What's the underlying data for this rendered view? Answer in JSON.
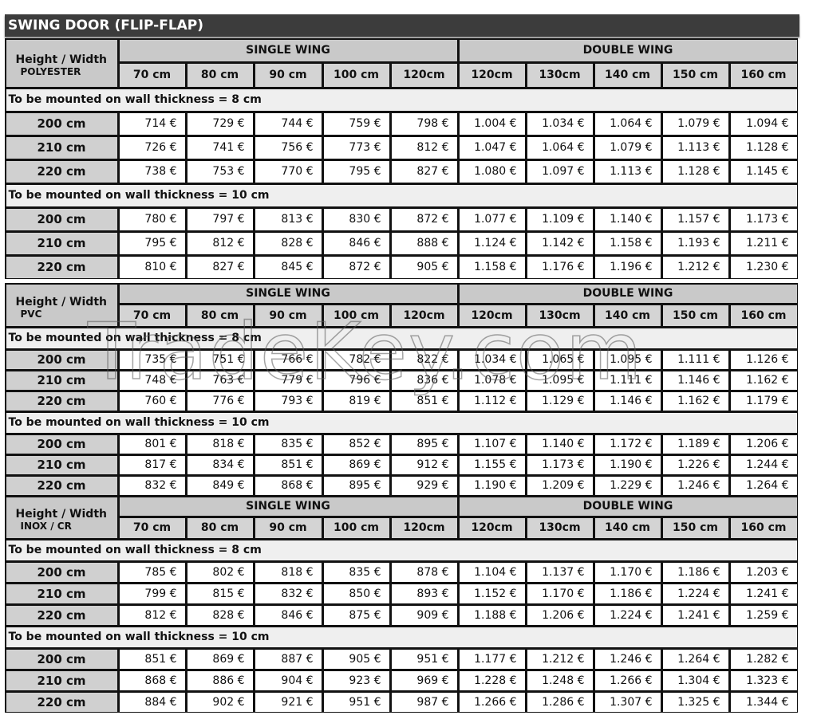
{
  "title": "SWING DOOR (FLIP-FLAP)",
  "watermark": "TradeKey.com",
  "sections": [
    {
      "corner": "Height / Width",
      "material": "POLYESTER",
      "groups": [
        "SINGLE WING",
        "DOUBLE WING"
      ],
      "widths": [
        "70 cm",
        "80 cm",
        "90 cm",
        "100 cm",
        "120cm",
        "120cm",
        "130cm",
        "140 cm",
        "150 cm",
        "160 cm"
      ],
      "blocks": [
        {
          "label": "To be mounted on wall thickness = 8 cm",
          "rows": [
            [
              "200 cm",
              "714 €",
              "729 €",
              "744 €",
              "759 €",
              "798 €",
              "1.004 €",
              "1.034 €",
              "1.064 €",
              "1.079 €",
              "1.094 €"
            ],
            [
              "210 cm",
              "726 €",
              "741 €",
              "756 €",
              "773 €",
              "812 €",
              "1.047 €",
              "1.064 €",
              "1.079 €",
              "1.113 €",
              "1.128 €"
            ],
            [
              "220 cm",
              "738 €",
              "753 €",
              "770 €",
              "795 €",
              "827 €",
              "1.080 €",
              "1.097 €",
              "1.113 €",
              "1.128 €",
              "1.145 €"
            ]
          ]
        },
        {
          "label": "To be mounted on wall thickness = 10 cm",
          "rows": [
            [
              "200 cm",
              "780 €",
              "797 €",
              "813 €",
              "830 €",
              "872 €",
              "1.077 €",
              "1.109 €",
              "1.140 €",
              "1.157 €",
              "1.173 €"
            ],
            [
              "210 cm",
              "795 €",
              "812 €",
              "828 €",
              "846 €",
              "888 €",
              "1.124 €",
              "1.142 €",
              "1.158 €",
              "1.193 €",
              "1.211 €"
            ],
            [
              "220 cm",
              "810 €",
              "827 €",
              "845 €",
              "872 €",
              "905 €",
              "1.158 €",
              "1.176 €",
              "1.196 €",
              "1.212 €",
              "1.230 €"
            ]
          ]
        }
      ]
    },
    {
      "corner": "Height / Width",
      "material": "PVC",
      "groups": [
        "SINGLE WING",
        "DOUBLE WING"
      ],
      "widths": [
        "70 cm",
        "80 cm",
        "90 cm",
        "100 cm",
        "120cm",
        "120cm",
        "130cm",
        "140 cm",
        "150 cm",
        "160 cm"
      ],
      "blocks": [
        {
          "label": "To be mounted on wall thickness = 8 cm",
          "rows": [
            [
              "200 cm",
              "735 €",
              "751 €",
              "766 €",
              "782 €",
              "822 €",
              "1.034 €",
              "1.065 €",
              "1.095 €",
              "1.111 €",
              "1.126 €"
            ],
            [
              "210 cm",
              "748 €",
              "763 €",
              "779 €",
              "796 €",
              "836 €",
              "1.078 €",
              "1.095 €",
              "1.111 €",
              "1.146 €",
              "1.162 €"
            ],
            [
              "220 cm",
              "760 €",
              "776 €",
              "793 €",
              "819 €",
              "851 €",
              "1.112 €",
              "1.129 €",
              "1.146 €",
              "1.162 €",
              "1.179 €"
            ]
          ]
        },
        {
          "label": "To be mounted on wall thickness = 10 cm",
          "rows": [
            [
              "200 cm",
              "801 €",
              "818 €",
              "835 €",
              "852 €",
              "895 €",
              "1.107 €",
              "1.140 €",
              "1.172 €",
              "1.189 €",
              "1.206 €"
            ],
            [
              "210 cm",
              "817 €",
              "834 €",
              "851 €",
              "869 €",
              "912 €",
              "1.155 €",
              "1.173 €",
              "1.190 €",
              "1.226 €",
              "1.244 €"
            ],
            [
              "220 cm",
              "832 €",
              "849 €",
              "868 €",
              "895 €",
              "929 €",
              "1.190 €",
              "1.209 €",
              "1.229 €",
              "1.246 €",
              "1.264 €"
            ]
          ]
        }
      ]
    },
    {
      "corner": "Height / Width",
      "material": "INOX / CR",
      "groups": [
        "SINGLE WING",
        "DOUBLE WING"
      ],
      "widths": [
        "70 cm",
        "80 cm",
        "90 cm",
        "100 cm",
        "120cm",
        "120cm",
        "130cm",
        "140 cm",
        "150 cm",
        "160 cm"
      ],
      "blocks": [
        {
          "label": "To be mounted on wall thickness = 8 cm",
          "rows": [
            [
              "200 cm",
              "785 €",
              "802 €",
              "818 €",
              "835 €",
              "878 €",
              "1.104 €",
              "1.137 €",
              "1.170 €",
              "1.186 €",
              "1.203 €"
            ],
            [
              "210 cm",
              "799 €",
              "815 €",
              "832 €",
              "850 €",
              "893 €",
              "1.152 €",
              "1.170 €",
              "1.186 €",
              "1.224 €",
              "1.241 €"
            ],
            [
              "220 cm",
              "812 €",
              "828 €",
              "846 €",
              "875 €",
              "909 €",
              "1.188 €",
              "1.206 €",
              "1.224 €",
              "1.241 €",
              "1.259 €"
            ]
          ]
        },
        {
          "label": "To be mounted on wall thickness = 10 cm",
          "rows": [
            [
              "200 cm",
              "851 €",
              "869 €",
              "887 €",
              "905 €",
              "951 €",
              "1.177 €",
              "1.212 €",
              "1.246 €",
              "1.264 €",
              "1.282 €"
            ],
            [
              "210 cm",
              "868 €",
              "886 €",
              "904 €",
              "923 €",
              "969 €",
              "1.228 €",
              "1.248 €",
              "1.266 €",
              "1.304 €",
              "1.323 €"
            ],
            [
              "220 cm",
              "884 €",
              "902 €",
              "921 €",
              "951 €",
              "987 €",
              "1.266 €",
              "1.286 €",
              "1.307 €",
              "1.325 €",
              "1.344 €"
            ]
          ]
        }
      ]
    }
  ]
}
